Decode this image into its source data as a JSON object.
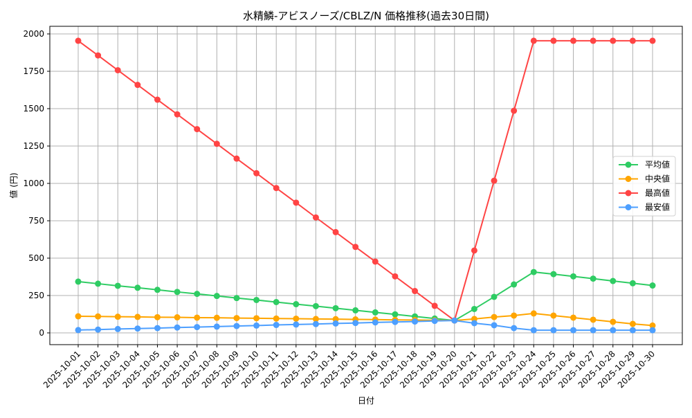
{
  "chart_data": {
    "type": "line",
    "title": "水精鱗-アビスノーズ/CBLZ/N 価格推移(過去30日間)",
    "xlabel": "日付",
    "ylabel": "値 (円)",
    "ylim": [
      -70,
      2050
    ],
    "yticks": [
      0,
      250,
      500,
      750,
      1000,
      1250,
      1500,
      1750,
      2000
    ],
    "grid": true,
    "legend_position": "center right",
    "categories": [
      "2025-10-01",
      "2025-10-02",
      "2025-10-03",
      "2025-10-04",
      "2025-10-05",
      "2025-10-06",
      "2025-10-07",
      "2025-10-08",
      "2025-10-09",
      "2025-10-10",
      "2025-10-11",
      "2025-10-12",
      "2025-10-13",
      "2025-10-14",
      "2025-10-15",
      "2025-10-16",
      "2025-10-17",
      "2025-10-18",
      "2025-10-19",
      "2025-10-20",
      "2025-10-21",
      "2025-10-22",
      "2025-10-23",
      "2025-10-24",
      "2025-10-25",
      "2025-10-26",
      "2025-10-27",
      "2025-10-28",
      "2025-10-29",
      "2025-10-30"
    ],
    "series": [
      {
        "name": "平均値",
        "color": "#2ecc63",
        "values": [
          343,
          329,
          315,
          302,
          288,
          274,
          261,
          247,
          233,
          220,
          206,
          192,
          179,
          165,
          151,
          137,
          124,
          110,
          96,
          83,
          160,
          241,
          324,
          407,
          393,
          378,
          363,
          347,
          332,
          317
        ]
      },
      {
        "name": "中央値",
        "color": "#ffa500",
        "values": [
          111,
          110,
          108,
          107,
          105,
          104,
          102,
          101,
          99,
          98,
          96,
          95,
          93,
          92,
          90,
          89,
          87,
          86,
          84,
          83,
          93,
          106,
          116,
          130,
          116,
          102,
          88,
          74,
          60,
          49
        ]
      },
      {
        "name": "最高値",
        "color": "#ff4444",
        "values": [
          1954,
          1856,
          1757,
          1659,
          1560,
          1462,
          1363,
          1265,
          1166,
          1068,
          969,
          871,
          772,
          674,
          575,
          477,
          378,
          280,
          181,
          83,
          551,
          1018,
          1486,
          1954,
          1954,
          1954,
          1954,
          1954,
          1954,
          1954
        ]
      },
      {
        "name": "最安値",
        "color": "#4d9fff",
        "values": [
          19,
          22,
          26,
          29,
          32,
          36,
          39,
          42,
          46,
          49,
          53,
          56,
          59,
          63,
          66,
          70,
          73,
          76,
          80,
          83,
          65,
          51,
          32,
          18,
          18,
          18,
          18,
          18,
          18,
          18
        ]
      }
    ]
  }
}
